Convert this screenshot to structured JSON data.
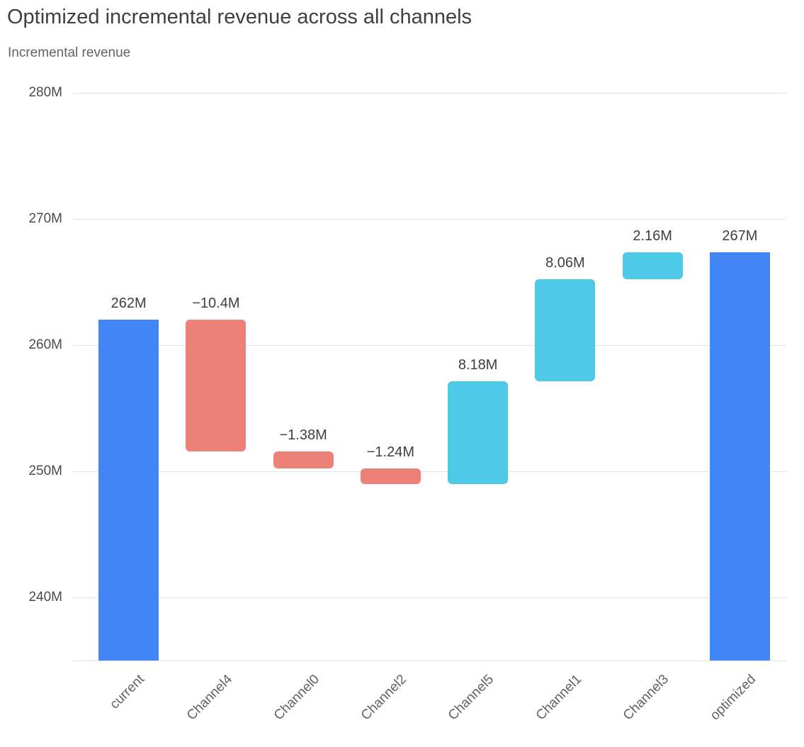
{
  "chart_data": {
    "type": "bar",
    "subtype": "waterfall",
    "title": "Optimized incremental revenue across all channels",
    "subtitle": "Incremental revenue",
    "categories": [
      "current",
      "Channel4",
      "Channel0",
      "Channel2",
      "Channel5",
      "Channel1",
      "Channel3",
      "optimized"
    ],
    "bars": [
      {
        "label": "current",
        "kind": "total",
        "value": 262,
        "display": "262M"
      },
      {
        "label": "Channel4",
        "kind": "delta",
        "value": -10.4,
        "display": "−10.4M"
      },
      {
        "label": "Channel0",
        "kind": "delta",
        "value": -1.38,
        "display": "−1.38M"
      },
      {
        "label": "Channel2",
        "kind": "delta",
        "value": -1.24,
        "display": "−1.24M"
      },
      {
        "label": "Channel5",
        "kind": "delta",
        "value": 8.18,
        "display": "8.18M"
      },
      {
        "label": "Channel1",
        "kind": "delta",
        "value": 8.06,
        "display": "8.06M"
      },
      {
        "label": "Channel3",
        "kind": "delta",
        "value": 2.16,
        "display": "2.16M"
      },
      {
        "label": "optimized",
        "kind": "total",
        "value": 267.38,
        "display": "267M"
      }
    ],
    "y_axis": {
      "ticks": [
        "280M",
        "270M",
        "260M",
        "250M",
        "240M"
      ],
      "tick_values": [
        280,
        270,
        260,
        250,
        240
      ],
      "min": 235,
      "max": 280,
      "unit": "M"
    },
    "colors": {
      "total": "#4285f4",
      "increase": "#4ec9e6",
      "decrease": "#ee8177",
      "gridline": "#e3e3e3"
    },
    "grid": true,
    "legend": "none"
  }
}
